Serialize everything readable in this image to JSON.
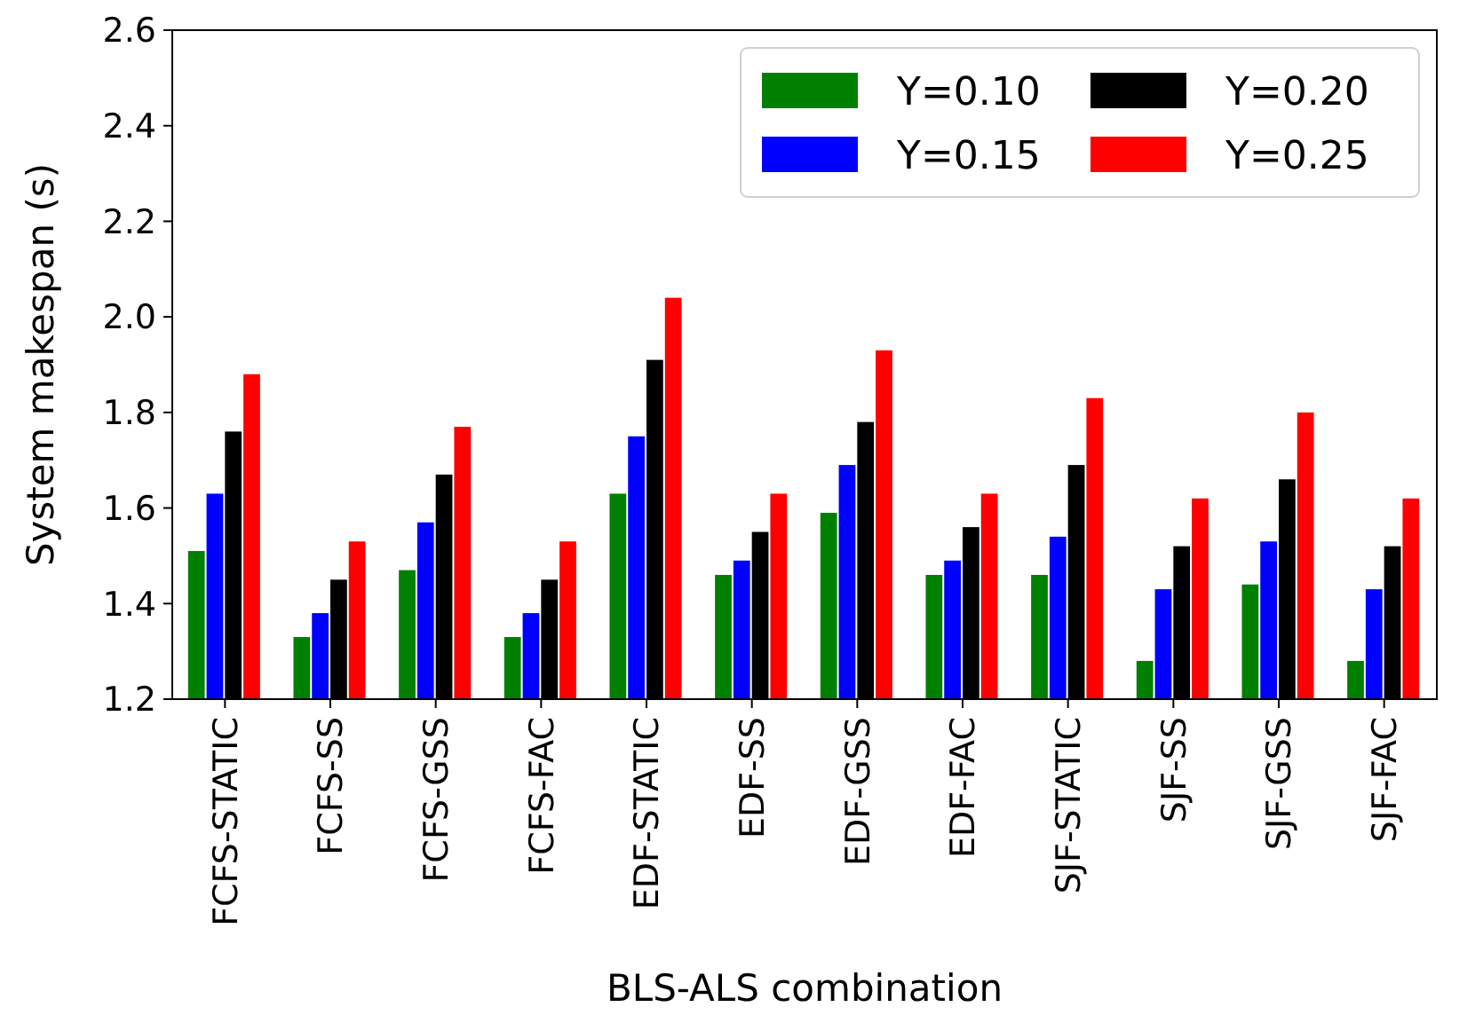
{
  "chart_data": {
    "type": "bar",
    "xlabel": "BLS-ALS combination",
    "ylabel": "System makespan (s)",
    "categories": [
      "FCFS-STATIC",
      "FCFS-SS",
      "FCFS-GSS",
      "FCFS-FAC",
      "EDF-STATIC",
      "EDF-SS",
      "EDF-GSS",
      "EDF-FAC",
      "SJF-STATIC",
      "SJF-SS",
      "SJF-GSS",
      "SJF-FAC"
    ],
    "series": [
      {
        "name": "Y=0.10",
        "color": "#008000",
        "values": [
          1.51,
          1.33,
          1.47,
          1.33,
          1.63,
          1.46,
          1.59,
          1.46,
          1.46,
          1.28,
          1.44,
          1.28
        ]
      },
      {
        "name": "Y=0.15",
        "color": "#0000ff",
        "values": [
          1.63,
          1.38,
          1.57,
          1.38,
          1.75,
          1.49,
          1.69,
          1.49,
          1.54,
          1.43,
          1.53,
          1.43
        ]
      },
      {
        "name": "Y=0.20",
        "color": "#000000",
        "values": [
          1.76,
          1.45,
          1.67,
          1.45,
          1.91,
          1.55,
          1.78,
          1.56,
          1.69,
          1.52,
          1.66,
          1.52
        ]
      },
      {
        "name": "Y=0.25",
        "color": "#ff0000",
        "values": [
          1.88,
          1.53,
          1.77,
          1.53,
          2.04,
          1.63,
          1.93,
          1.63,
          1.83,
          1.62,
          1.8,
          1.62
        ]
      }
    ],
    "ylim": [
      1.2,
      2.6
    ],
    "yticks": [
      1.2,
      1.4,
      1.6,
      1.8,
      {
        "value": 2,
        "label": "2.0"
      },
      2.2,
      2.4,
      2.6
    ],
    "grid": false,
    "legend": "top right"
  }
}
